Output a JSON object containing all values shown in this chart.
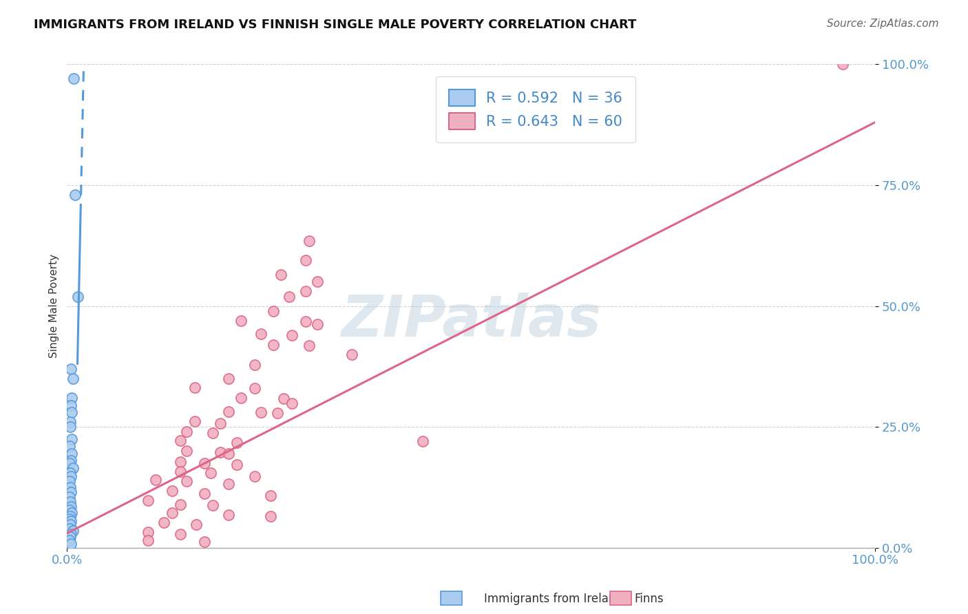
{
  "title": "IMMIGRANTS FROM IRELAND VS FINNISH SINGLE MALE POVERTY CORRELATION CHART",
  "source": "Source: ZipAtlas.com",
  "ylabel": "Single Male Poverty",
  "xlim": [
    0,
    1.0
  ],
  "ylim": [
    0,
    1.0
  ],
  "ytick_positions": [
    0.0,
    0.25,
    0.5,
    0.75,
    1.0
  ],
  "ytick_labels": [
    "0.0%",
    "25.0%",
    "50.0%",
    "75.0%",
    "100.0%"
  ],
  "xtick_positions": [
    0.0,
    1.0
  ],
  "xtick_labels": [
    "0.0%",
    "100.0%"
  ],
  "grid_color": "#cccccc",
  "background_color": "#ffffff",
  "watermark": "ZIPatlas",
  "legend_R1": "R = 0.592",
  "legend_N1": "N = 36",
  "legend_R2": "R = 0.643",
  "legend_N2": "N = 60",
  "blue_color": "#aaccee",
  "pink_color": "#f0b0c0",
  "blue_edge_color": "#5599dd",
  "pink_edge_color": "#dd6688",
  "blue_scatter": [
    [
      0.008,
      0.97
    ],
    [
      0.01,
      0.73
    ],
    [
      0.013,
      0.52
    ],
    [
      0.005,
      0.37
    ],
    [
      0.007,
      0.35
    ],
    [
      0.006,
      0.31
    ],
    [
      0.005,
      0.295
    ],
    [
      0.006,
      0.28
    ],
    [
      0.004,
      0.26
    ],
    [
      0.004,
      0.25
    ],
    [
      0.006,
      0.225
    ],
    [
      0.003,
      0.21
    ],
    [
      0.006,
      0.195
    ],
    [
      0.005,
      0.18
    ],
    [
      0.003,
      0.175
    ],
    [
      0.007,
      0.165
    ],
    [
      0.004,
      0.155
    ],
    [
      0.005,
      0.148
    ],
    [
      0.003,
      0.138
    ],
    [
      0.004,
      0.125
    ],
    [
      0.005,
      0.115
    ],
    [
      0.003,
      0.105
    ],
    [
      0.004,
      0.095
    ],
    [
      0.005,
      0.085
    ],
    [
      0.003,
      0.078
    ],
    [
      0.006,
      0.072
    ],
    [
      0.004,
      0.065
    ],
    [
      0.003,
      0.06
    ],
    [
      0.005,
      0.055
    ],
    [
      0.004,
      0.048
    ],
    [
      0.003,
      0.04
    ],
    [
      0.007,
      0.035
    ],
    [
      0.005,
      0.028
    ],
    [
      0.004,
      0.022
    ],
    [
      0.003,
      0.015
    ],
    [
      0.005,
      0.008
    ]
  ],
  "pink_scatter": [
    [
      0.96,
      1.0
    ],
    [
      0.3,
      0.635
    ],
    [
      0.295,
      0.595
    ],
    [
      0.265,
      0.565
    ],
    [
      0.31,
      0.55
    ],
    [
      0.295,
      0.53
    ],
    [
      0.275,
      0.52
    ],
    [
      0.255,
      0.49
    ],
    [
      0.215,
      0.47
    ],
    [
      0.295,
      0.468
    ],
    [
      0.31,
      0.462
    ],
    [
      0.24,
      0.443
    ],
    [
      0.278,
      0.44
    ],
    [
      0.255,
      0.42
    ],
    [
      0.3,
      0.418
    ],
    [
      0.352,
      0.4
    ],
    [
      0.232,
      0.378
    ],
    [
      0.2,
      0.35
    ],
    [
      0.158,
      0.332
    ],
    [
      0.232,
      0.33
    ],
    [
      0.215,
      0.31
    ],
    [
      0.268,
      0.308
    ],
    [
      0.278,
      0.298
    ],
    [
      0.2,
      0.282
    ],
    [
      0.24,
      0.28
    ],
    [
      0.26,
      0.278
    ],
    [
      0.158,
      0.262
    ],
    [
      0.19,
      0.258
    ],
    [
      0.148,
      0.24
    ],
    [
      0.18,
      0.238
    ],
    [
      0.14,
      0.222
    ],
    [
      0.21,
      0.218
    ],
    [
      0.44,
      0.22
    ],
    [
      0.148,
      0.2
    ],
    [
      0.19,
      0.198
    ],
    [
      0.2,
      0.195
    ],
    [
      0.14,
      0.178
    ],
    [
      0.17,
      0.175
    ],
    [
      0.21,
      0.172
    ],
    [
      0.14,
      0.158
    ],
    [
      0.178,
      0.155
    ],
    [
      0.232,
      0.148
    ],
    [
      0.11,
      0.14
    ],
    [
      0.148,
      0.138
    ],
    [
      0.2,
      0.132
    ],
    [
      0.13,
      0.118
    ],
    [
      0.17,
      0.112
    ],
    [
      0.252,
      0.108
    ],
    [
      0.1,
      0.098
    ],
    [
      0.14,
      0.09
    ],
    [
      0.18,
      0.088
    ],
    [
      0.13,
      0.072
    ],
    [
      0.2,
      0.068
    ],
    [
      0.252,
      0.065
    ],
    [
      0.12,
      0.052
    ],
    [
      0.16,
      0.048
    ],
    [
      0.1,
      0.032
    ],
    [
      0.14,
      0.028
    ],
    [
      0.1,
      0.015
    ],
    [
      0.17,
      0.012
    ]
  ],
  "blue_trendline_solid": [
    [
      0.013,
      0.42
    ],
    [
      0.013,
      1.02
    ]
  ],
  "blue_trendline_dashed": [
    [
      0.004,
      0.3
    ],
    [
      0.022,
      1.25
    ]
  ],
  "pink_trendline": [
    [
      0.0,
      0.03
    ],
    [
      1.0,
      0.88
    ]
  ]
}
